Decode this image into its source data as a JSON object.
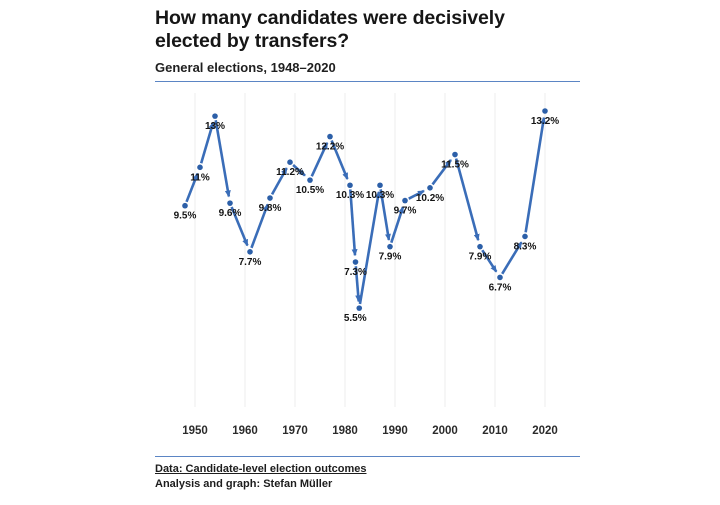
{
  "header": {
    "title": "How many candidates were decisively elected by transfers?",
    "subtitle": "General elections, 1948–2020"
  },
  "footer": {
    "source": "Data: Candidate-level election outcomes",
    "credit": "Analysis and graph: Stefan Müller"
  },
  "colors": {
    "line": "#3a6db8",
    "point": "#2c5fa8",
    "rule": "#5b85c4",
    "grid": "#ececec",
    "label_text": "#141414",
    "tick_text": "#2b2b2b"
  },
  "chart_data": {
    "type": "line",
    "title": "How many candidates were decisively elected by transfers?",
    "subtitle": "General elections, 1948–2020",
    "x": [
      1948,
      1951,
      1954,
      1957,
      1961,
      1965,
      1969,
      1973,
      1977,
      1981,
      1982.1,
      1982.85,
      1987,
      1989,
      1992,
      1997,
      2002,
      2007,
      2011,
      2016,
      2020
    ],
    "values": [
      9.5,
      11.0,
      13.0,
      9.6,
      7.7,
      9.8,
      11.2,
      10.5,
      12.2,
      10.3,
      7.3,
      5.5,
      10.3,
      7.9,
      9.7,
      10.2,
      11.5,
      7.9,
      6.7,
      8.3,
      13.2
    ],
    "point_labels": [
      "9.5%",
      "11%",
      "13%",
      "9.6%",
      "7.7%",
      "9.8%",
      "11.2%",
      "10.5%",
      "12.2%",
      "10.3%",
      "7.3%",
      "5.5%",
      "10.3%",
      "7.9%",
      "9.7%",
      "10.2%",
      "11.5%",
      "7.9%",
      "6.7%",
      "8.3%",
      "13.2%"
    ],
    "label_dx_overrides": {
      "11": -4
    },
    "x_ticks": [
      1950,
      1960,
      1970,
      1980,
      1990,
      2000,
      2010,
      2020
    ],
    "xlim": [
      1946,
      2023
    ],
    "ylim": [
      5.5,
      13.2
    ],
    "xlabel": "",
    "ylabel": "",
    "grid": "vertical-only",
    "legend": "none",
    "marker_style": "dots with arrowed connecting segments, labels below points"
  }
}
